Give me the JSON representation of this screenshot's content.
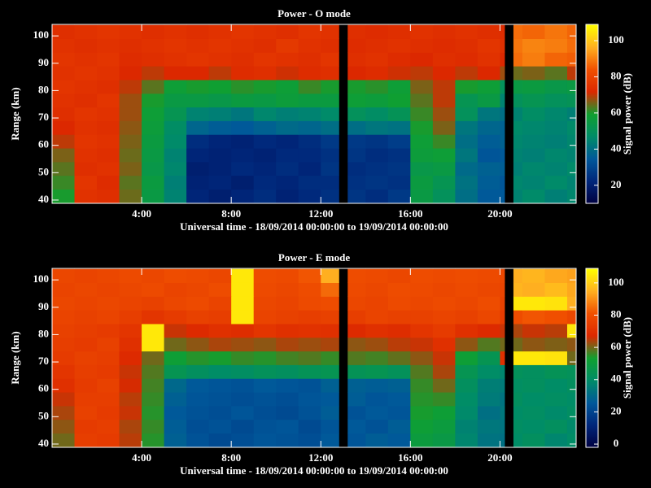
{
  "chart_data": [
    {
      "type": "heatmap",
      "title": "Power - O mode",
      "xlabel": "Universal time - 18/09/2014 00:00:00 to 19/09/2014 00:00:00",
      "ylabel": "Range (km)",
      "colorbar_label": "Signal power (dB)",
      "x": [
        0,
        1,
        2,
        3,
        4,
        5,
        6,
        7,
        8,
        9,
        10,
        11,
        12,
        12.8,
        13.2,
        14,
        15,
        16,
        17,
        18,
        19,
        20,
        20.2,
        20.6,
        21,
        22,
        23,
        23.4
      ],
      "y": [
        39,
        44,
        49,
        54,
        59,
        64,
        69,
        74,
        79,
        84,
        89,
        94,
        99,
        104
      ],
      "xlim": [
        0,
        23.4
      ],
      "ylim": [
        38.8,
        104.2
      ],
      "zlim": [
        10,
        109
      ],
      "xticks": [
        {
          "value": 4,
          "label": "4:00"
        },
        {
          "value": 8,
          "label": "8:00"
        },
        {
          "value": 12,
          "label": "12:00"
        },
        {
          "value": 16,
          "label": "16:00"
        },
        {
          "value": 20,
          "label": "20:00"
        }
      ],
      "yticks": [
        40,
        50,
        60,
        70,
        80,
        90,
        100
      ],
      "zticks": [
        20,
        40,
        60,
        80,
        100
      ],
      "colormap": [
        "#000040",
        "#00267a",
        "#00589a",
        "#008c68",
        "#10a030",
        "#dc2800",
        "#f05000",
        "#ffb020",
        "#ffff00"
      ],
      "z": [
        [
          60,
          75,
          74,
          65,
          55,
          45,
          22,
          20,
          22,
          24,
          21,
          23,
          25,
          null,
          26,
          24,
          27,
          55,
          50,
          40,
          35,
          35,
          null,
          45,
          47,
          44,
          46
        ],
        [
          62,
          76,
          73,
          64,
          56,
          44,
          21,
          22,
          20,
          23,
          22,
          24,
          24,
          null,
          25,
          26,
          25,
          56,
          52,
          41,
          36,
          34,
          null,
          46,
          45,
          47,
          45
        ],
        [
          64,
          74,
          75,
          66,
          54,
          46,
          20,
          21,
          23,
          22,
          24,
          22,
          26,
          null,
          24,
          25,
          26,
          54,
          55,
          39,
          37,
          36,
          null,
          44,
          46,
          45,
          47
        ],
        [
          66,
          75,
          74,
          65,
          55,
          45,
          22,
          21,
          22,
          21,
          23,
          23,
          25,
          null,
          26,
          24,
          25,
          57,
          58,
          42,
          34,
          35,
          null,
          45,
          44,
          46,
          45
        ],
        [
          70,
          76,
          75,
          66,
          56,
          47,
          24,
          22,
          21,
          23,
          22,
          24,
          27,
          null,
          27,
          26,
          28,
          58,
          62,
          40,
          36,
          37,
          null,
          46,
          45,
          44,
          46
        ],
        [
          72,
          75,
          74,
          67,
          57,
          48,
          38,
          36,
          35,
          37,
          39,
          38,
          40,
          null,
          40,
          42,
          41,
          60,
          66,
          42,
          38,
          37,
          null,
          47,
          46,
          45,
          47
        ],
        [
          74,
          76,
          75,
          68,
          58,
          52,
          45,
          44,
          42,
          46,
          44,
          45,
          47,
          null,
          50,
          48,
          51,
          62,
          68,
          50,
          42,
          40,
          null,
          45,
          48,
          46,
          44
        ],
        [
          75,
          74,
          76,
          68,
          60,
          55,
          55,
          54,
          56,
          55,
          57,
          56,
          56,
          null,
          58,
          57,
          59,
          64,
          70,
          52,
          55,
          45,
          null,
          50,
          52,
          50,
          51
        ],
        [
          76,
          75,
          74,
          70,
          64,
          58,
          60,
          59,
          61,
          60,
          58,
          62,
          60,
          null,
          60,
          61,
          58,
          66,
          70,
          60,
          58,
          50,
          null,
          55,
          56,
          54,
          55
        ],
        [
          75,
          76,
          75,
          72,
          70,
          72,
          72,
          70,
          73,
          74,
          71,
          73,
          74,
          null,
          72,
          73,
          71,
          70,
          72,
          70,
          72,
          68,
          null,
          65,
          66,
          64,
          70
        ],
        [
          76,
          75,
          76,
          73,
          74,
          75,
          76,
          75,
          74,
          76,
          75,
          74,
          76,
          null,
          74,
          75,
          73,
          72,
          74,
          73,
          75,
          72,
          null,
          88,
          90,
          87,
          86
        ],
        [
          75,
          74,
          75,
          74,
          75,
          76,
          75,
          76,
          75,
          74,
          77,
          75,
          74,
          null,
          73,
          74,
          75,
          74,
          73,
          74,
          76,
          74,
          null,
          89,
          91,
          90,
          88
        ],
        [
          74,
          75,
          76,
          75,
          74,
          75,
          74,
          75,
          76,
          75,
          74,
          76,
          75,
          null,
          74,
          73,
          74,
          75,
          74,
          75,
          74,
          73,
          null,
          88,
          87,
          89,
          87
        ]
      ]
    },
    {
      "type": "heatmap",
      "title": "Power - E mode",
      "xlabel": "Universal time - 18/09/2014 00:00:00 to 19/09/2014 00:00:00",
      "ylabel": "Range (km)",
      "colorbar_label": "Signal power (dB)",
      "x": [
        0,
        1,
        2,
        3,
        4,
        5,
        6,
        7,
        8,
        9,
        10,
        11,
        12,
        12.8,
        13.2,
        14,
        15,
        16,
        17,
        18,
        19,
        20,
        20.2,
        20.6,
        21,
        22,
        23,
        23.4
      ],
      "y": [
        39,
        44,
        49,
        54,
        59,
        64,
        69,
        74,
        79,
        84,
        89,
        94,
        99,
        104
      ],
      "xlim": [
        0,
        23.4
      ],
      "ylim": [
        38.8,
        104.2
      ],
      "zlim": [
        -2,
        109
      ],
      "xticks": [
        {
          "value": 4,
          "label": "4:00"
        },
        {
          "value": 8,
          "label": "8:00"
        },
        {
          "value": 12,
          "label": "12:00"
        },
        {
          "value": 16,
          "label": "16:00"
        },
        {
          "value": 20,
          "label": "20:00"
        }
      ],
      "yticks": [
        40,
        50,
        60,
        70,
        80,
        90,
        100
      ],
      "zticks": [
        0,
        20,
        40,
        60,
        80,
        100
      ],
      "colormap": [
        "#000040",
        "#00267a",
        "#00589a",
        "#008c68",
        "#10a030",
        "#dc2800",
        "#f05000",
        "#ffb020",
        "#ffff00"
      ],
      "z": [
        [
          60,
          75,
          74,
          65,
          55,
          28,
          24,
          22,
          23,
          25,
          24,
          23,
          26,
          null,
          25,
          27,
          26,
          50,
          48,
          38,
          33,
          32,
          null,
          40,
          42,
          38,
          40
        ],
        [
          62,
          74,
          75,
          64,
          56,
          27,
          23,
          24,
          22,
          24,
          25,
          22,
          25,
          null,
          26,
          24,
          27,
          52,
          50,
          37,
          34,
          33,
          null,
          41,
          40,
          42,
          39
        ],
        [
          64,
          76,
          74,
          66,
          55,
          26,
          24,
          23,
          25,
          23,
          22,
          24,
          27,
          null,
          24,
          26,
          25,
          54,
          52,
          39,
          32,
          34,
          null,
          40,
          41,
          39,
          41
        ],
        [
          66,
          75,
          75,
          65,
          56,
          28,
          25,
          24,
          23,
          24,
          23,
          25,
          26,
          null,
          27,
          25,
          26,
          55,
          56,
          40,
          35,
          33,
          null,
          42,
          40,
          41,
          40
        ],
        [
          70,
          74,
          76,
          67,
          57,
          30,
          26,
          25,
          24,
          26,
          25,
          24,
          28,
          null,
          28,
          27,
          28,
          56,
          60,
          42,
          36,
          35,
          null,
          41,
          42,
          40,
          42
        ],
        [
          72,
          75,
          74,
          66,
          58,
          45,
          42,
          40,
          41,
          43,
          42,
          44,
          45,
          null,
          44,
          45,
          43,
          58,
          64,
          45,
          40,
          38,
          null,
          43,
          42,
          44,
          43
        ],
        [
          74,
          76,
          75,
          68,
          60,
          52,
          55,
          54,
          56,
          55,
          57,
          58,
          56,
          null,
          58,
          57,
          59,
          62,
          66,
          52,
          45,
          70,
          null,
          105,
          105,
          104,
          60
        ],
        [
          75,
          74,
          76,
          70,
          105,
          60,
          62,
          64,
          63,
          62,
          64,
          63,
          64,
          null,
          62,
          63,
          65,
          66,
          70,
          62,
          58,
          60,
          null,
          60,
          62,
          61,
          62
        ],
        [
          76,
          75,
          74,
          72,
          105,
          66,
          68,
          70,
          69,
          72,
          70,
          71,
          70,
          null,
          68,
          70,
          69,
          72,
          74,
          70,
          68,
          66,
          null,
          64,
          66,
          65,
          105
        ],
        [
          77,
          76,
          77,
          75,
          72,
          74,
          76,
          75,
          105,
          77,
          76,
          75,
          76,
          null,
          75,
          77,
          76,
          76,
          77,
          76,
          78,
          74,
          null,
          80,
          82,
          81,
          78
        ],
        [
          78,
          77,
          78,
          77,
          76,
          78,
          79,
          77,
          105,
          78,
          77,
          79,
          80,
          null,
          78,
          77,
          79,
          78,
          79,
          78,
          80,
          76,
          null,
          105,
          105,
          104,
          95
        ],
        [
          77,
          78,
          77,
          78,
          79,
          77,
          78,
          80,
          105,
          79,
          78,
          80,
          85,
          null,
          79,
          78,
          80,
          79,
          78,
          79,
          78,
          77,
          null,
          96,
          95,
          97,
          94
        ],
        [
          78,
          77,
          78,
          79,
          78,
          80,
          79,
          78,
          105,
          80,
          79,
          82,
          95,
          null,
          80,
          79,
          78,
          80,
          79,
          80,
          79,
          78,
          null,
          95,
          96,
          94,
          93
        ]
      ]
    }
  ]
}
